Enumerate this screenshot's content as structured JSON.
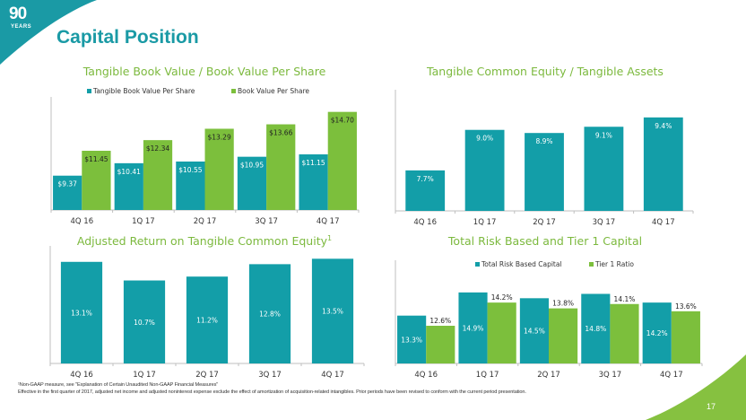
{
  "page": {
    "title": "Capital Position",
    "logo": {
      "number": "90",
      "subtitle": "YEARS"
    },
    "page_number": "17",
    "colors": {
      "teal": "#139ea8",
      "green": "#7cbf3c",
      "title_green": "#7cb93e",
      "title_teal": "#1a9aa5"
    },
    "footnotes": [
      "¹Non-GAAP measure, see \"Explanation of Certain Unaudited Non-GAAP Financial Measures\"",
      "Effective in the first quarter of 2017, adjusted net income and adjusted noninterest expense exclude the effect of amortization of acquisition-related intangibles.  Prior periods have been revised to conform with the current period presentation."
    ]
  },
  "chart_data": [
    {
      "id": "tbv",
      "type": "bar",
      "title": "Tangible Book Value / Book Value Per Share",
      "title_sup": "",
      "categories": [
        "4Q 16",
        "1Q 17",
        "2Q 17",
        "3Q 17",
        "4Q 17"
      ],
      "series": [
        {
          "name": "Tangible Book Value Per Share",
          "color": "#139ea8",
          "values": [
            9.37,
            10.41,
            10.55,
            10.95,
            11.15
          ],
          "labels": [
            "$9.37",
            "$10.41",
            "$10.55",
            "$10.95",
            "$11.15"
          ],
          "label_color": "#ffffff",
          "label_pos": "inside"
        },
        {
          "name": "Book Value Per Share",
          "color": "#7cbf3c",
          "values": [
            11.45,
            12.34,
            13.29,
            13.66,
            14.7
          ],
          "labels": [
            "$11.45",
            "$12.34",
            "$13.29",
            "$13.66",
            "$14.70"
          ],
          "label_color": "#222222",
          "label_pos": "inside"
        }
      ],
      "legend": "top",
      "ylim": [
        6.5,
        15.2
      ],
      "grid": false,
      "xlabel": "",
      "ylabel": ""
    },
    {
      "id": "tce",
      "type": "bar",
      "title": "Tangible Common Equity / Tangible Assets",
      "title_sup": "",
      "categories": [
        "4Q 16",
        "1Q 17",
        "2Q 17",
        "3Q 17",
        "4Q 17"
      ],
      "series": [
        {
          "name": "Tangible Common Equity / Tangible Assets",
          "color": "#139ea8",
          "values": [
            7.7,
            9.0,
            8.9,
            9.1,
            9.4
          ],
          "labels": [
            "7.7%",
            "9.0%",
            "8.9%",
            "9.1%",
            "9.4%"
          ],
          "label_color": "#ffffff",
          "label_pos": "inside"
        }
      ],
      "legend": "none",
      "ylim": [
        6.4,
        10.0
      ],
      "grid": false,
      "xlabel": "",
      "ylabel": ""
    },
    {
      "id": "rotce",
      "type": "bar",
      "title": "Adjusted Return on Tangible Common Equity",
      "title_sup": "1",
      "categories": [
        "4Q 16",
        "1Q 17",
        "2Q 17",
        "3Q 17",
        "4Q 17"
      ],
      "series": [
        {
          "name": "Adjusted Return on Tangible Common Equity",
          "color": "#139ea8",
          "values": [
            13.1,
            10.7,
            11.2,
            12.8,
            13.5
          ],
          "labels": [
            "13.1%",
            "10.7%",
            "11.2%",
            "12.8%",
            "13.5%"
          ],
          "label_color": "#ffffff",
          "label_pos": "middle"
        }
      ],
      "legend": "none",
      "ylim": [
        0,
        14.0
      ],
      "grid": false,
      "xlabel": "",
      "ylabel": ""
    },
    {
      "id": "capital",
      "type": "bar",
      "title": "Total Risk Based and Tier 1 Capital",
      "title_sup": "",
      "categories": [
        "4Q 16",
        "1Q 17",
        "2Q 17",
        "3Q 17",
        "4Q 17"
      ],
      "series": [
        {
          "name": "Total Risk Based Capital",
          "color": "#139ea8",
          "values": [
            13.3,
            14.9,
            14.5,
            14.8,
            14.2
          ],
          "labels": [
            "13.3%",
            "14.9%",
            "14.5%",
            "14.8%",
            "14.2%"
          ],
          "label_color": "#ffffff",
          "label_pos": "middle"
        },
        {
          "name": "Tier 1 Ratio",
          "color": "#7cbf3c",
          "values": [
            12.6,
            14.2,
            13.8,
            14.1,
            13.6
          ],
          "labels": [
            "12.6%",
            "14.2%",
            "13.8%",
            "14.1%",
            "13.6%"
          ],
          "label_color": "#222222",
          "label_pos": "above"
        }
      ],
      "legend": "top",
      "ylim": [
        10.0,
        16.5
      ],
      "grid": false,
      "xlabel": "",
      "ylabel": ""
    }
  ]
}
